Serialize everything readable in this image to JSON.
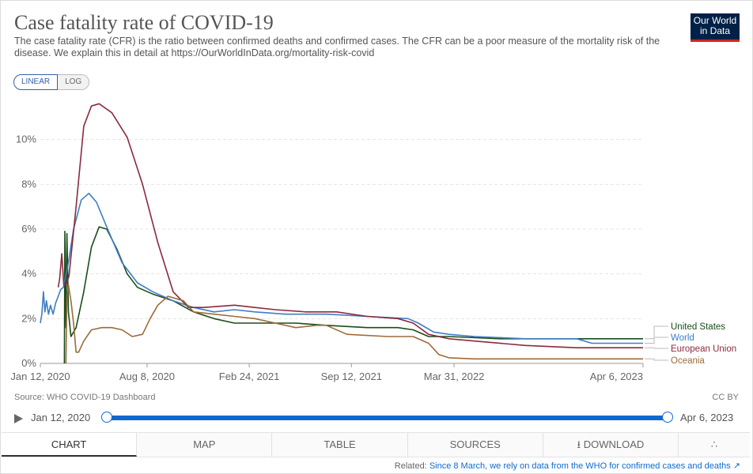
{
  "header": {
    "title": "Case fatality rate of COVID-19",
    "subtitle": "The case fatality rate (CFR) is the ratio between confirmed deaths and confirmed cases. The CFR can be a poor measure of the mortality risk of the disease. We explain this in detail at https://OurWorldInData.org/mortality-risk-covid",
    "logo": "Our World in Data"
  },
  "scale": {
    "linear": "LINEAR",
    "log": "LOG"
  },
  "chart_data": {
    "type": "line",
    "title": "Case fatality rate of COVID-19",
    "ylim": [
      0,
      12
    ],
    "y_ticks": [
      "0%",
      "2%",
      "4%",
      "6%",
      "8%",
      "10%"
    ],
    "x_tick_labels": [
      "Jan 12, 2020",
      "Aug 8, 2020",
      "Feb 24, 2021",
      "Sep 12, 2021",
      "Mar 31, 2022",
      "Apr 6, 2023"
    ],
    "x_tick_days": [
      0,
      209,
      409,
      609,
      810,
      1180
    ],
    "x_range_days": [
      0,
      1180
    ],
    "series": [
      {
        "name": "United States",
        "color": "#1a4d1a",
        "points": [
          [
            47,
            0
          ],
          [
            48,
            5.9
          ],
          [
            50,
            1.6
          ],
          [
            52,
            5.8
          ],
          [
            55,
            2.3
          ],
          [
            60,
            1.2
          ],
          [
            70,
            1.6
          ],
          [
            85,
            3.2
          ],
          [
            100,
            5.2
          ],
          [
            115,
            6.1
          ],
          [
            130,
            6.0
          ],
          [
            150,
            5.1
          ],
          [
            170,
            4.0
          ],
          [
            190,
            3.4
          ],
          [
            220,
            3.1
          ],
          [
            260,
            2.8
          ],
          [
            300,
            2.3
          ],
          [
            340,
            2.0
          ],
          [
            380,
            1.8
          ],
          [
            420,
            1.8
          ],
          [
            460,
            1.8
          ],
          [
            500,
            1.8
          ],
          [
            560,
            1.7
          ],
          [
            640,
            1.6
          ],
          [
            700,
            1.6
          ],
          [
            730,
            1.5
          ],
          [
            760,
            1.2
          ],
          [
            800,
            1.2
          ],
          [
            900,
            1.1
          ],
          [
            1000,
            1.1
          ],
          [
            1180,
            1.1
          ]
        ]
      },
      {
        "name": "World",
        "color": "#3d7ec4",
        "points": [
          [
            0,
            1.8
          ],
          [
            3,
            2.2
          ],
          [
            6,
            3.2
          ],
          [
            9,
            2.3
          ],
          [
            12,
            2.8
          ],
          [
            16,
            2.2
          ],
          [
            20,
            2.6
          ],
          [
            25,
            2.2
          ],
          [
            30,
            2.7
          ],
          [
            35,
            3.0
          ],
          [
            40,
            3.3
          ],
          [
            45,
            3.4
          ],
          [
            55,
            4.5
          ],
          [
            65,
            6.0
          ],
          [
            80,
            7.3
          ],
          [
            95,
            7.6
          ],
          [
            110,
            7.2
          ],
          [
            130,
            6.1
          ],
          [
            160,
            4.5
          ],
          [
            190,
            3.6
          ],
          [
            220,
            3.2
          ],
          [
            260,
            2.8
          ],
          [
            300,
            2.5
          ],
          [
            340,
            2.3
          ],
          [
            380,
            2.4
          ],
          [
            420,
            2.3
          ],
          [
            480,
            2.2
          ],
          [
            560,
            2.2
          ],
          [
            640,
            2.1
          ],
          [
            720,
            2.0
          ],
          [
            740,
            1.8
          ],
          [
            770,
            1.4
          ],
          [
            800,
            1.3
          ],
          [
            850,
            1.2
          ],
          [
            950,
            1.1
          ],
          [
            1050,
            1.1
          ],
          [
            1080,
            0.9
          ],
          [
            1180,
            0.9
          ]
        ]
      },
      {
        "name": "European Union",
        "color": "#8b2a3d",
        "points": [
          [
            35,
            3.4
          ],
          [
            38,
            3.8
          ],
          [
            42,
            4.9
          ],
          [
            46,
            3.5
          ],
          [
            50,
            3.5
          ],
          [
            56,
            3.9
          ],
          [
            70,
            7.0
          ],
          [
            85,
            10.6
          ],
          [
            100,
            11.5
          ],
          [
            115,
            11.6
          ],
          [
            140,
            11.2
          ],
          [
            170,
            10.1
          ],
          [
            200,
            8.0
          ],
          [
            230,
            5.4
          ],
          [
            260,
            3.2
          ],
          [
            290,
            2.5
          ],
          [
            320,
            2.5
          ],
          [
            380,
            2.6
          ],
          [
            420,
            2.5
          ],
          [
            460,
            2.4
          ],
          [
            520,
            2.3
          ],
          [
            580,
            2.3
          ],
          [
            640,
            2.1
          ],
          [
            700,
            2.0
          ],
          [
            730,
            1.8
          ],
          [
            760,
            1.3
          ],
          [
            800,
            1.1
          ],
          [
            850,
            1.0
          ],
          [
            950,
            0.8
          ],
          [
            1050,
            0.7
          ],
          [
            1180,
            0.7
          ]
        ]
      },
      {
        "name": "Oceania",
        "color": "#9c6b3a",
        "points": [
          [
            50,
            0
          ],
          [
            52,
            3.0
          ],
          [
            55,
            3.5
          ],
          [
            60,
            2.8
          ],
          [
            65,
            1.8
          ],
          [
            70,
            0.5
          ],
          [
            75,
            0.5
          ],
          [
            85,
            1.0
          ],
          [
            100,
            1.5
          ],
          [
            120,
            1.6
          ],
          [
            140,
            1.6
          ],
          [
            160,
            1.5
          ],
          [
            180,
            1.2
          ],
          [
            200,
            1.3
          ],
          [
            215,
            2.0
          ],
          [
            230,
            2.6
          ],
          [
            250,
            3.0
          ],
          [
            280,
            2.8
          ],
          [
            300,
            2.3
          ],
          [
            340,
            2.2
          ],
          [
            380,
            2.1
          ],
          [
            420,
            2.0
          ],
          [
            460,
            1.8
          ],
          [
            500,
            1.6
          ],
          [
            540,
            1.7
          ],
          [
            560,
            1.7
          ],
          [
            600,
            1.3
          ],
          [
            680,
            1.2
          ],
          [
            730,
            1.2
          ],
          [
            760,
            0.9
          ],
          [
            780,
            0.4
          ],
          [
            800,
            0.25
          ],
          [
            850,
            0.2
          ],
          [
            950,
            0.2
          ],
          [
            1180,
            0.2
          ]
        ]
      }
    ]
  },
  "footer": {
    "source": "Source: WHO COVID-19 Dashboard",
    "license": "CC BY"
  },
  "timeline": {
    "start": "Jan 12, 2020",
    "end": "Apr 6, 2023"
  },
  "tabs": {
    "chart": "CHART",
    "map": "MAP",
    "table": "TABLE",
    "sources": "SOURCES",
    "download": "DOWNLOAD"
  },
  "related": {
    "label": "Related:",
    "text": "Since 8 March, we rely on data from the WHO for confirmed cases and deaths"
  },
  "icons": {
    "play": "play-icon",
    "download": "download-icon",
    "share": "share-icon",
    "external": "external-link-icon"
  }
}
